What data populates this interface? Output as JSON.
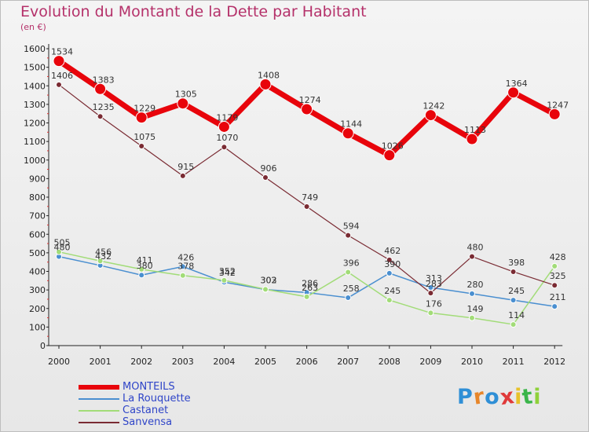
{
  "title": "Evolution du Montant de la Dette par Habitant",
  "subtitle": "(en €)",
  "logo_text": "Proxiti",
  "logo_colors": [
    "#2f8fd6",
    "#e7862a",
    "#2f8fd6",
    "#e03a3a",
    "#e7c22a",
    "#3ab54a",
    "#8fd13a"
  ],
  "chart_data": {
    "type": "line",
    "x": [
      "2000",
      "2001",
      "2002",
      "2003",
      "2004",
      "2005",
      "2006",
      "2007",
      "2008",
      "2009",
      "2010",
      "2011",
      "2012"
    ],
    "ylim": [
      0,
      1600
    ],
    "yticks": [
      0,
      100,
      200,
      300,
      400,
      500,
      600,
      700,
      800,
      900,
      1000,
      1100,
      1200,
      1300,
      1400,
      1500,
      1600
    ],
    "grid": false,
    "legend_position": "bottom-left",
    "series": [
      {
        "name": "MONTEILS",
        "color": "#e8040b",
        "values": [
          1534,
          1383,
          1229,
          1305,
          1179,
          1408,
          1274,
          1144,
          1026,
          1242,
          1113,
          1364,
          1247
        ]
      },
      {
        "name": "La Rouquette",
        "color": "#4a8fd0",
        "values": [
          480,
          432,
          380,
          426,
          342,
          302,
          286,
          258,
          390,
          313,
          280,
          245,
          211
        ]
      },
      {
        "name": "Castanet",
        "color": "#a2dc78",
        "values": [
          505,
          456,
          411,
          378,
          352,
          303,
          263,
          396,
          245,
          176,
          149,
          114,
          428
        ]
      },
      {
        "name": "Sanvensa",
        "color": "#7a2b33",
        "values": [
          1406,
          1235,
          1075,
          915,
          1070,
          906,
          749,
          594,
          462,
          283,
          480,
          398,
          325
        ]
      }
    ]
  }
}
